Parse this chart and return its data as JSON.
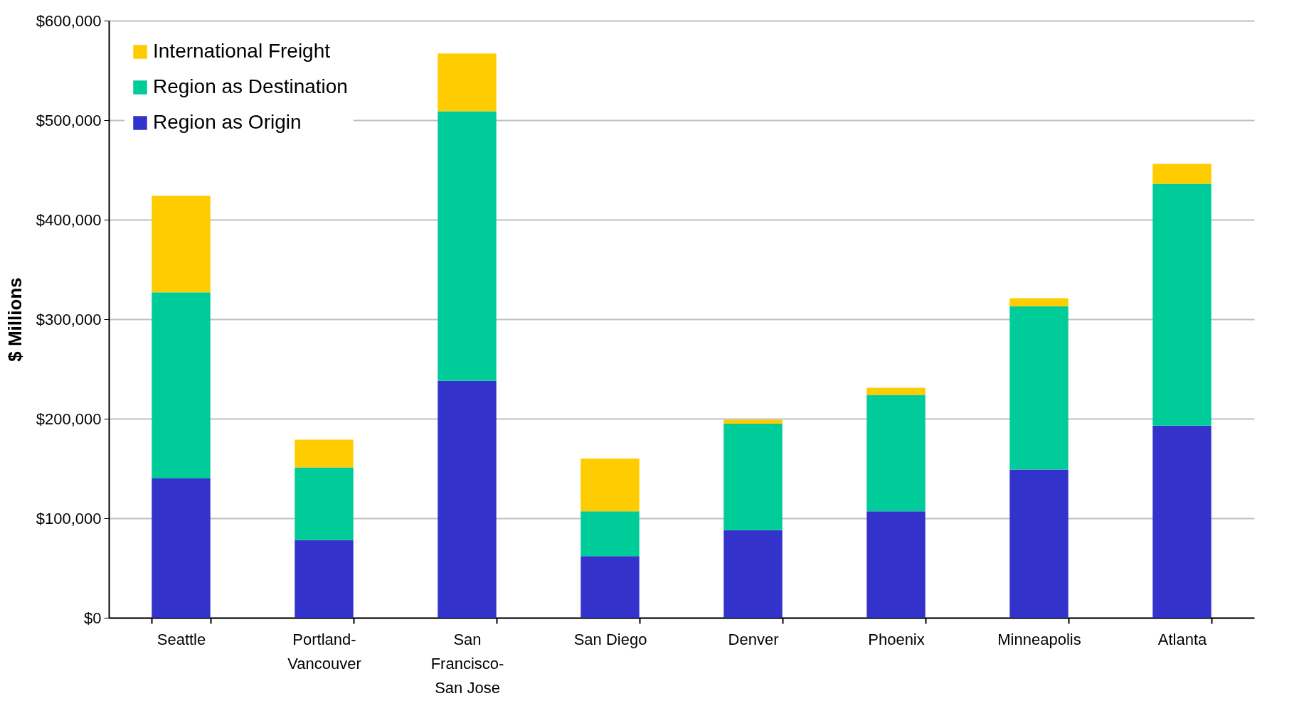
{
  "chart_data": {
    "type": "bar",
    "stacked": true,
    "ylabel": "$ Millions",
    "categories": [
      "Seattle",
      "Portland-Vancouver",
      "San Francisco-San Jose",
      "San Diego",
      "Denver",
      "Phoenix",
      "Minneapolis",
      "Atlanta"
    ],
    "series": [
      {
        "name": "Region as Origin",
        "color": "#3333cc",
        "values": [
          140000,
          78000,
          238000,
          62000,
          88000,
          107000,
          149000,
          193000
        ]
      },
      {
        "name": "Region as Destination",
        "color": "#00cc99",
        "values": [
          187000,
          73000,
          271000,
          45000,
          107000,
          117000,
          164000,
          243000
        ]
      },
      {
        "name": "International Freight",
        "color": "#ffcc00",
        "values": [
          97000,
          28000,
          58000,
          53000,
          4000,
          7000,
          8000,
          20000
        ]
      }
    ],
    "ylim": [
      0,
      600000
    ],
    "yticks": [
      {
        "value": 0,
        "label": "$0"
      },
      {
        "value": 100000,
        "label": "$100,000"
      },
      {
        "value": 200000,
        "label": "$200,000"
      },
      {
        "value": 300000,
        "label": "$300,000"
      },
      {
        "value": 400000,
        "label": "$400,000"
      },
      {
        "value": 500000,
        "label": "$500,000"
      },
      {
        "value": 600000,
        "label": "$600,000"
      }
    ],
    "grid": "y",
    "legend": "top left"
  }
}
